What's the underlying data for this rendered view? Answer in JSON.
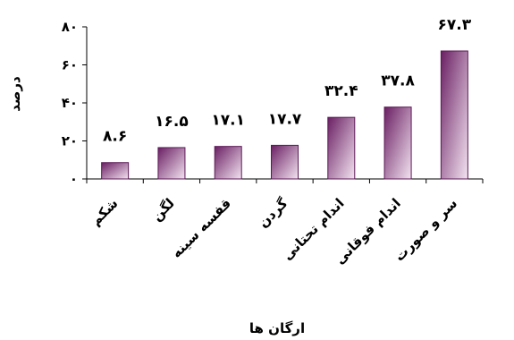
{
  "chart_data": {
    "type": "bar",
    "categories": [
      "شکم",
      "لگن",
      "قفسه سینه",
      "گردن",
      "اندام تحتانی",
      "اندام فوقانی",
      "سر و صورت"
    ],
    "values": [
      8.6,
      16.5,
      17.1,
      17.7,
      32.4,
      37.8,
      67.3
    ],
    "value_labels": [
      "۸.۶",
      "۱۶.۵",
      "۱۷.۱",
      "۱۷.۷",
      "۳۲.۴",
      "۳۷.۸",
      "۶۷.۳"
    ],
    "yticks": [
      0,
      20,
      40,
      60,
      80
    ],
    "ytick_labels": [
      "۰",
      "۲۰",
      "۴۰",
      "۶۰",
      "۸۰"
    ],
    "ylim": [
      0,
      80
    ],
    "xlabel": "ارگان ها",
    "ylabel": "درصد",
    "title": "",
    "grid": false,
    "legend": "none",
    "colors": {
      "bar_dark": "#6a1f63",
      "bar_light": "#f3e3f1",
      "bar_edge": "#5c1a56",
      "axis": "#000000"
    }
  }
}
